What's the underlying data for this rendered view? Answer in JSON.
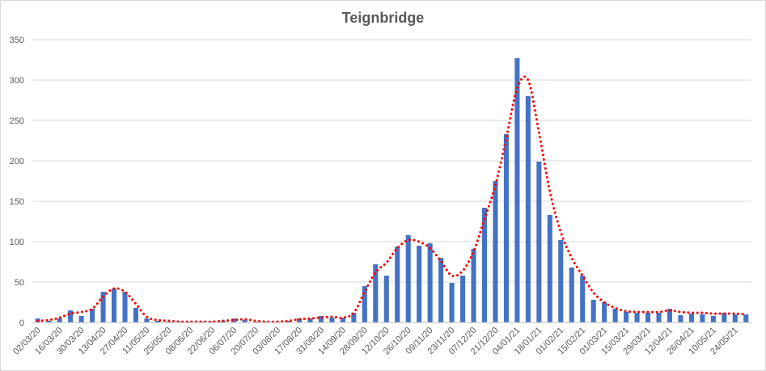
{
  "chart_data": {
    "type": "bar",
    "title": "Teignbridge",
    "xlabel": "",
    "ylabel": "",
    "ylim": [
      0,
      350
    ],
    "yticks": [
      "0",
      "50",
      "100",
      "150",
      "200",
      "250",
      "300",
      "350"
    ],
    "grid": true,
    "legend": "none",
    "tick_labels": [
      "02/03/20",
      "16/03/20",
      "30/03/20",
      "13/04/20",
      "27/04/20",
      "11/05/20",
      "25/05/20",
      "08/06/20",
      "22/06/20",
      "06/07/20",
      "20/07/20",
      "03/08/20",
      "17/08/20",
      "31/08/20",
      "14/09/20",
      "28/09/20",
      "12/10/20",
      "26/10/20",
      "09/11/20",
      "23/11/20",
      "07/12/20",
      "21/12/20",
      "04/01/21",
      "18/01/21",
      "01/02/21",
      "15/02/21",
      "01/03/21",
      "15/03/21",
      "29/03/21",
      "12/04/21",
      "26/04/21",
      "10/05/21",
      "24/05/21"
    ],
    "categories": [
      "02/03/20",
      "09/03/20",
      "16/03/20",
      "23/03/20",
      "30/03/20",
      "06/04/20",
      "13/04/20",
      "20/04/20",
      "27/04/20",
      "04/05/20",
      "11/05/20",
      "18/05/20",
      "25/05/20",
      "01/06/20",
      "08/06/20",
      "15/06/20",
      "22/06/20",
      "29/06/20",
      "06/07/20",
      "13/07/20",
      "20/07/20",
      "27/07/20",
      "03/08/20",
      "10/08/20",
      "17/08/20",
      "24/08/20",
      "31/08/20",
      "07/09/20",
      "14/09/20",
      "21/09/20",
      "28/09/20",
      "05/10/20",
      "12/10/20",
      "19/10/20",
      "26/10/20",
      "02/11/20",
      "09/11/20",
      "16/11/20",
      "23/11/20",
      "30/11/20",
      "07/12/20",
      "14/12/20",
      "21/12/20",
      "28/12/20",
      "04/01/21",
      "11/01/21",
      "18/01/21",
      "25/01/21",
      "01/02/21",
      "08/02/21",
      "15/02/21",
      "22/02/21",
      "01/03/21",
      "08/03/21",
      "15/03/21",
      "22/03/21",
      "29/03/21",
      "05/04/21",
      "12/04/21",
      "19/04/21",
      "26/04/21",
      "03/05/21",
      "10/05/21",
      "17/05/21",
      "24/05/21",
      "31/05/21"
    ],
    "series": [
      {
        "type": "bar",
        "color": "#4472c4",
        "values": [
          5,
          2,
          5,
          15,
          8,
          17,
          38,
          42,
          38,
          18,
          5,
          2,
          1,
          1,
          1,
          1,
          1,
          2,
          5,
          3,
          1,
          1,
          1,
          2,
          5,
          5,
          8,
          6,
          6,
          12,
          45,
          72,
          58,
          94,
          108,
          95,
          98,
          80,
          49,
          58,
          91,
          142,
          175,
          233,
          327,
          280,
          199,
          133,
          102,
          68,
          58,
          28,
          25,
          17,
          13,
          12,
          12,
          12,
          17,
          9,
          11,
          10,
          8,
          12,
          10,
          10
        ]
      },
      {
        "type": "line",
        "style": "dotted",
        "color": "#ff0000",
        "values": [
          2,
          3,
          6,
          11,
          13,
          17,
          32,
          42,
          38,
          23,
          7,
          3,
          2,
          1,
          1,
          1,
          1,
          2,
          3,
          4,
          2,
          1,
          1,
          2,
          4,
          5,
          6,
          7,
          6,
          12,
          38,
          62,
          74,
          92,
          102,
          100,
          92,
          76,
          58,
          64,
          88,
          128,
          170,
          228,
          290,
          300,
          235,
          162,
          112,
          80,
          58,
          37,
          25,
          18,
          14,
          13,
          13,
          13,
          15,
          13,
          12,
          12,
          11,
          11,
          11,
          10
        ]
      }
    ]
  }
}
